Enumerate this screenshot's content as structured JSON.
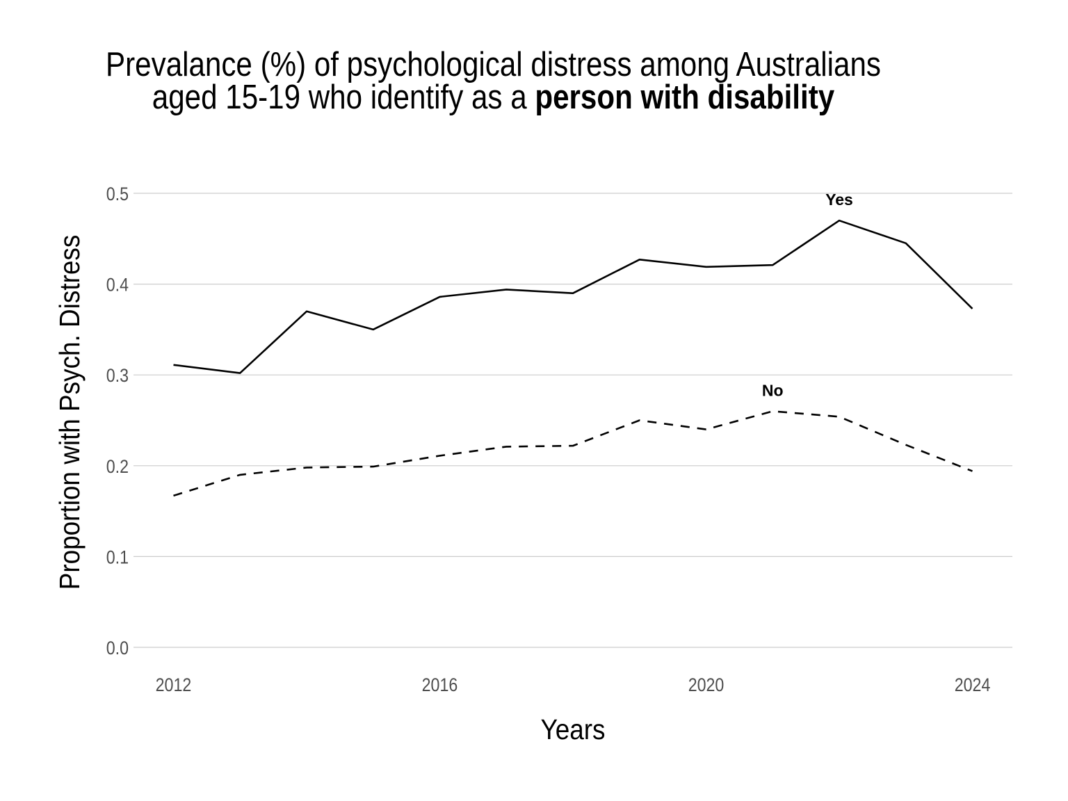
{
  "chart_data": {
    "type": "line",
    "title_line1": "Prevalance (%) of psychological distress among Australians",
    "title_line2_prefix": "aged 15-19 who identify as a ",
    "title_line2_bold": "person with disability",
    "xlabel": "Years",
    "ylabel": "Proportion with Psych. Distress",
    "x": [
      2012,
      2013,
      2014,
      2015,
      2016,
      2017,
      2018,
      2019,
      2020,
      2021,
      2022,
      2023,
      2024
    ],
    "xlim": [
      2011.4,
      2024.6
    ],
    "ylim": [
      0,
      0.5
    ],
    "x_ticks": [
      "2012",
      "2016",
      "2020",
      "2024"
    ],
    "y_ticks": [
      "0.0",
      "0.1",
      "0.2",
      "0.3",
      "0.4",
      "0.5"
    ],
    "grid": "horizontal",
    "legend": "none (direct labels)",
    "series": [
      {
        "name": "Yes",
        "line_style": "solid",
        "color": "#000000",
        "values": [
          0.311,
          0.302,
          0.37,
          0.35,
          0.386,
          0.394,
          0.39,
          0.427,
          0.419,
          0.421,
          0.47,
          0.445,
          0.373
        ],
        "label_at": 2022
      },
      {
        "name": "No",
        "line_style": "dashed",
        "color": "#000000",
        "values": [
          0.167,
          0.19,
          0.198,
          0.199,
          0.211,
          0.221,
          0.222,
          0.25,
          0.24,
          0.26,
          0.254,
          0.223,
          0.194
        ],
        "label_at": 2021
      }
    ]
  }
}
